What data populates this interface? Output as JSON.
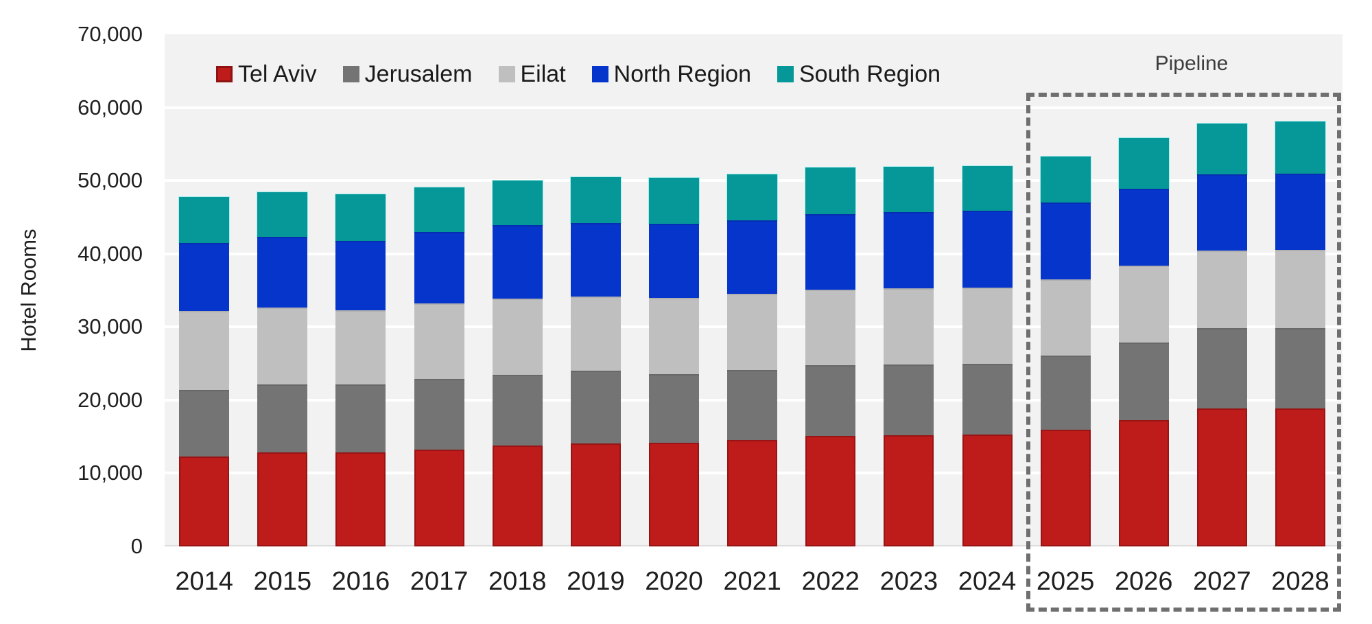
{
  "chart_data": {
    "type": "bar",
    "stacked": true,
    "title": "",
    "xlabel": "",
    "ylabel": "Hotel Rooms",
    "ylim": [
      0,
      70000
    ],
    "ytick_interval": 10000,
    "ytick_labels": [
      "0",
      "10,000",
      "20,000",
      "30,000",
      "40,000",
      "50,000",
      "60,000",
      "70,000"
    ],
    "grid": true,
    "legend_position": "top",
    "categories": [
      "2014",
      "2015",
      "2016",
      "2017",
      "2018",
      "2019",
      "2020",
      "2021",
      "2022",
      "2023",
      "2024",
      "2025",
      "2026",
      "2027",
      "2028"
    ],
    "series": [
      {
        "name": "Tel Aviv",
        "color": "#BE1B1B",
        "values": [
          12300,
          12900,
          12900,
          13200,
          13800,
          14100,
          14200,
          14500,
          15100,
          15200,
          15300,
          16000,
          17300,
          18900,
          18900
        ]
      },
      {
        "name": "Jerusalem",
        "color": "#747474",
        "values": [
          9100,
          9200,
          9200,
          9700,
          9700,
          9900,
          9400,
          9600,
          9700,
          9700,
          9700,
          10100,
          10600,
          10900,
          10900
        ]
      },
      {
        "name": "Eilat",
        "color": "#BFBFBF",
        "values": [
          10800,
          10600,
          10200,
          10300,
          10400,
          10200,
          10400,
          10400,
          10300,
          10400,
          10400,
          10400,
          10500,
          10600,
          10700
        ]
      },
      {
        "name": "North Region",
        "color": "#0635CB",
        "values": [
          9300,
          9600,
          9500,
          9800,
          10000,
          10000,
          10100,
          10100,
          10300,
          10400,
          10500,
          10500,
          10500,
          10500,
          10500
        ]
      },
      {
        "name": "South Region",
        "color": "#069898",
        "values": [
          6300,
          6100,
          6300,
          6100,
          6100,
          6300,
          6300,
          6300,
          6400,
          6200,
          6100,
          6300,
          6900,
          6900,
          7100
        ]
      }
    ],
    "totals": [
      47800,
      48400,
      48100,
      49100,
      50000,
      50500,
      50400,
      50900,
      51800,
      51900,
      52000,
      53300,
      55800,
      57800,
      58100
    ],
    "annotation": {
      "label": "Pipeline",
      "start_category": "2025",
      "end_category": "2028",
      "style": "dashed-box",
      "color": "#6F6F6F"
    }
  },
  "colors": {
    "plot_background": "#F2F2F2",
    "gridline": "#FFFFFF",
    "axis_baseline": "#DCDCDC",
    "text": "#1F1F1F"
  }
}
